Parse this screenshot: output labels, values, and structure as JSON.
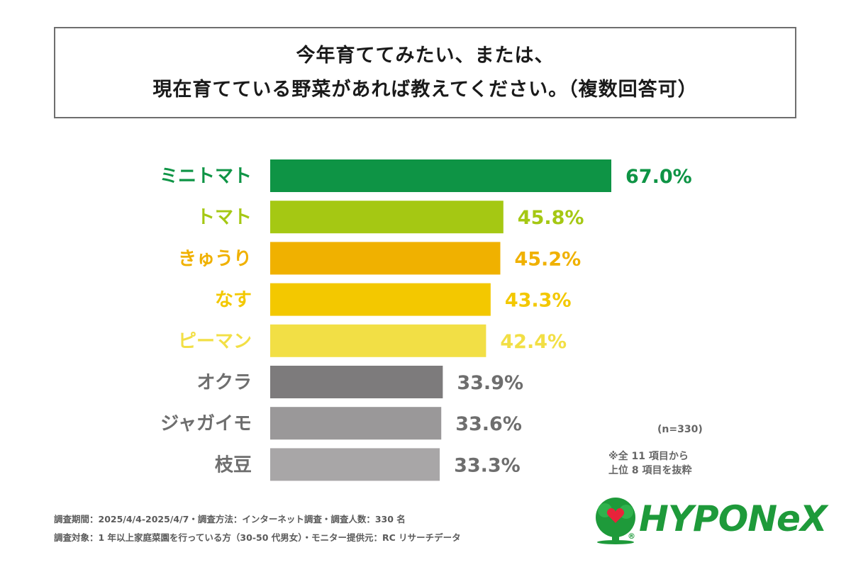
{
  "title": {
    "line1": "今年育ててみたい、または、",
    "line2": "現在育てている野菜があれば教えてください。（複数回答可）"
  },
  "chart_data": {
    "type": "bar",
    "orientation": "horizontal",
    "categories": [
      "ミニトマト",
      "トマト",
      "きゅうり",
      "なす",
      "ピーマン",
      "オクラ",
      "ジャガイモ",
      "枝豆"
    ],
    "values": [
      67.0,
      45.8,
      45.2,
      43.3,
      42.4,
      33.9,
      33.6,
      33.3
    ],
    "value_labels": [
      "67.0%",
      "45.8%",
      "45.2%",
      "43.3%",
      "42.4%",
      "33.9%",
      "33.6%",
      "33.3%"
    ],
    "colors": [
      "#0e9445",
      "#a5c813",
      "#f0b100",
      "#f3c800",
      "#f2df45",
      "#7d7b7c",
      "#9a9899",
      "#a8a6a7"
    ],
    "label_colors": [
      "#0e9445",
      "#a5c813",
      "#f0b100",
      "#f3c800",
      "#f2df45",
      "#6e6e6e",
      "#6e6e6e",
      "#6e6e6e"
    ],
    "xlim": [
      0,
      100
    ],
    "grid": false
  },
  "notes": {
    "sample": "(n=330)",
    "excerpt_line1": "※全 11 項目から",
    "excerpt_line2": "上位 8 項目を抜粋"
  },
  "footer": {
    "line1": "調査期間：2025/4/4-2025/4/7・調査方法：インターネット調査・調査人数：330 名",
    "line2": "調査対象：1 年以上家庭菜園を行っている方（30-50 代男女）・モニター提供元：RC リサーチデータ"
  },
  "logo": {
    "text": "HYPONeX",
    "reg": "®",
    "brand_color": "#1e9a3a"
  }
}
